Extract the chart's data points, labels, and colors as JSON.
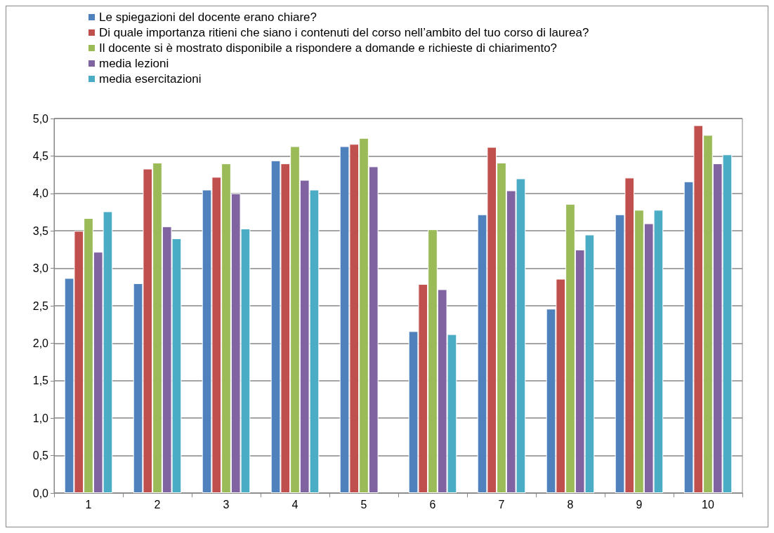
{
  "chart_data": {
    "type": "bar",
    "categories": [
      "1",
      "2",
      "3",
      "4",
      "5",
      "6",
      "7",
      "8",
      "9",
      "10"
    ],
    "series": [
      {
        "name": "Le spiegazioni del docente erano chiare?",
        "color": "#4f81bd",
        "values": [
          2.87,
          2.8,
          4.05,
          4.44,
          4.63,
          2.16,
          3.72,
          2.46,
          3.72,
          4.16
        ]
      },
      {
        "name": "Di quale importanza ritieni che siano i contenuti del corso nell’ambito del tuo corso di laurea?",
        "color": "#c0504d",
        "values": [
          3.5,
          4.33,
          4.22,
          4.4,
          4.66,
          2.79,
          4.62,
          2.86,
          4.21,
          4.91
        ]
      },
      {
        "name": "Il docente si è mostrato disponibile a rispondere a domande e richieste di chiarimento?",
        "color": "#9bbb59",
        "values": [
          3.67,
          4.41,
          4.4,
          4.63,
          4.74,
          3.52,
          4.41,
          3.86,
          3.78,
          4.78
        ]
      },
      {
        "name": "media lezioni",
        "color": "#8064a2",
        "values": [
          3.22,
          3.56,
          4.0,
          4.18,
          4.36,
          2.72,
          4.04,
          3.25,
          3.6,
          4.4
        ]
      },
      {
        "name": "media esercitazioni",
        "color": "#4bacc6",
        "values": [
          3.76,
          3.4,
          3.53,
          4.05,
          null,
          2.12,
          4.2,
          3.45,
          3.78,
          4.52
        ]
      }
    ],
    "ylim": [
      0,
      5
    ],
    "yticks": [
      {
        "value": 0,
        "label": "0,0"
      },
      {
        "value": 0.5,
        "label": "0,5"
      },
      {
        "value": 1,
        "label": "1,0"
      },
      {
        "value": 1.5,
        "label": "1,5"
      },
      {
        "value": 2,
        "label": "2,0"
      },
      {
        "value": 2.5,
        "label": "2,5"
      },
      {
        "value": 3,
        "label": "3,0"
      },
      {
        "value": 3.5,
        "label": "3,5"
      },
      {
        "value": 4,
        "label": "4,0"
      },
      {
        "value": 4.5,
        "label": "4,5"
      },
      {
        "value": 5,
        "label": "5,0"
      }
    ],
    "grid": "y",
    "legend": "top left"
  }
}
